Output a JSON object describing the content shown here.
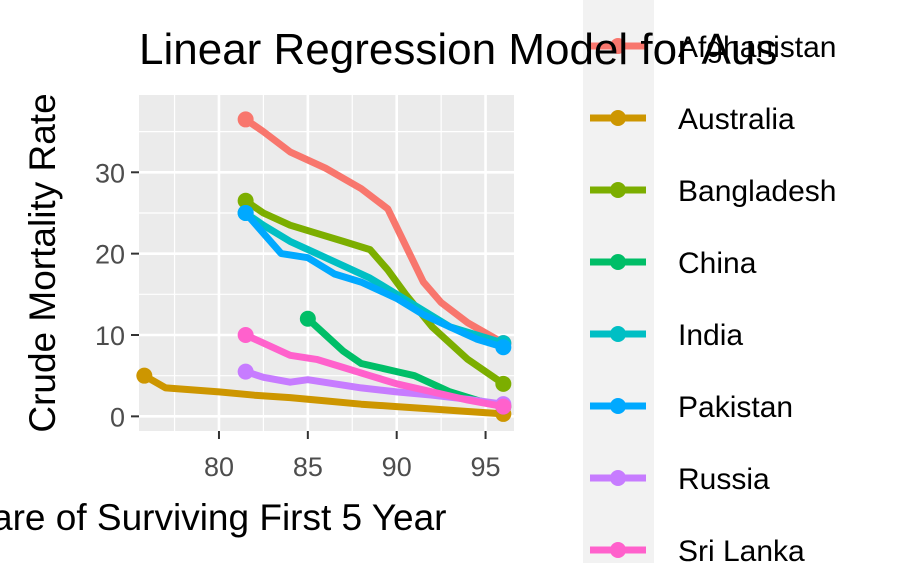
{
  "chart_data": {
    "type": "line",
    "title": "Linear Regression Model for Aus",
    "xlabel": "are of Surviving First 5 Year",
    "ylabel": "Crude Mortality Rate",
    "xlim": [
      75.5,
      96.6
    ],
    "ylim": [
      -1.8,
      39.5
    ],
    "x_ticks": [
      80,
      85,
      90,
      95
    ],
    "y_ticks": [
      0,
      10,
      20,
      30
    ],
    "grid": true,
    "legend_position": "right",
    "series": [
      {
        "name": "Afghanistan",
        "color": "#F8766D",
        "x": [
          81.5,
          82.5,
          84,
          86,
          88,
          89.5,
          90.5,
          91.5,
          92.5,
          94,
          96
        ],
        "y": [
          36.5,
          35,
          32.5,
          30.5,
          28,
          25.5,
          21,
          16.5,
          14,
          11.5,
          9
        ]
      },
      {
        "name": "Australia",
        "color": "#CD9600",
        "x": [
          75.8,
          77,
          80,
          82,
          84,
          86,
          88,
          90,
          92,
          94,
          96
        ],
        "y": [
          5,
          3.5,
          3,
          2.6,
          2.3,
          1.9,
          1.5,
          1.2,
          0.9,
          0.6,
          0.3
        ]
      },
      {
        "name": "Bangladesh",
        "color": "#7CAE00",
        "x": [
          81.5,
          82.5,
          84,
          85.5,
          87,
          88.5,
          89.5,
          90.5,
          92,
          94,
          96
        ],
        "y": [
          26.5,
          25,
          23.5,
          22.5,
          21.5,
          20.5,
          18,
          15,
          11,
          7,
          4
        ]
      },
      {
        "name": "China",
        "color": "#00BE67",
        "x": [
          85,
          86,
          87,
          88,
          89,
          90,
          91,
          92,
          93,
          94.5,
          96
        ],
        "y": [
          12,
          10,
          8,
          6.5,
          6,
          5.5,
          5,
          4,
          3,
          2,
          1.2
        ]
      },
      {
        "name": "India",
        "color": "#00BFC4",
        "x": [
          81.5,
          82.5,
          84,
          85.5,
          87,
          88.5,
          90,
          91.5,
          93,
          94.5,
          96
        ],
        "y": [
          25,
          23.5,
          21.5,
          20,
          18.5,
          17,
          15,
          13,
          11,
          10,
          9
        ]
      },
      {
        "name": "Pakistan",
        "color": "#00A9FF",
        "x": [
          81.5,
          82.5,
          83.5,
          85,
          86.5,
          88,
          90,
          91.5,
          93,
          94.5,
          96
        ],
        "y": [
          25,
          22.5,
          20,
          19.5,
          17.5,
          16.5,
          14.5,
          12.5,
          11,
          9.5,
          8.5
        ]
      },
      {
        "name": "Russia",
        "color": "#C77CFF",
        "x": [
          81.5,
          82.5,
          84,
          85,
          86.5,
          88,
          90,
          92,
          94,
          96
        ],
        "y": [
          5.5,
          4.8,
          4.2,
          4.5,
          4,
          3.5,
          3,
          2.6,
          2.1,
          1.5
        ]
      },
      {
        "name": "Sri Lanka",
        "color": "#FF61CC",
        "x": [
          81.5,
          82.5,
          84,
          85.5,
          87,
          88.5,
          90,
          92,
          94,
          96
        ],
        "y": [
          10,
          9,
          7.5,
          7,
          6,
          5,
          4,
          3,
          2,
          1.2
        ]
      }
    ]
  }
}
